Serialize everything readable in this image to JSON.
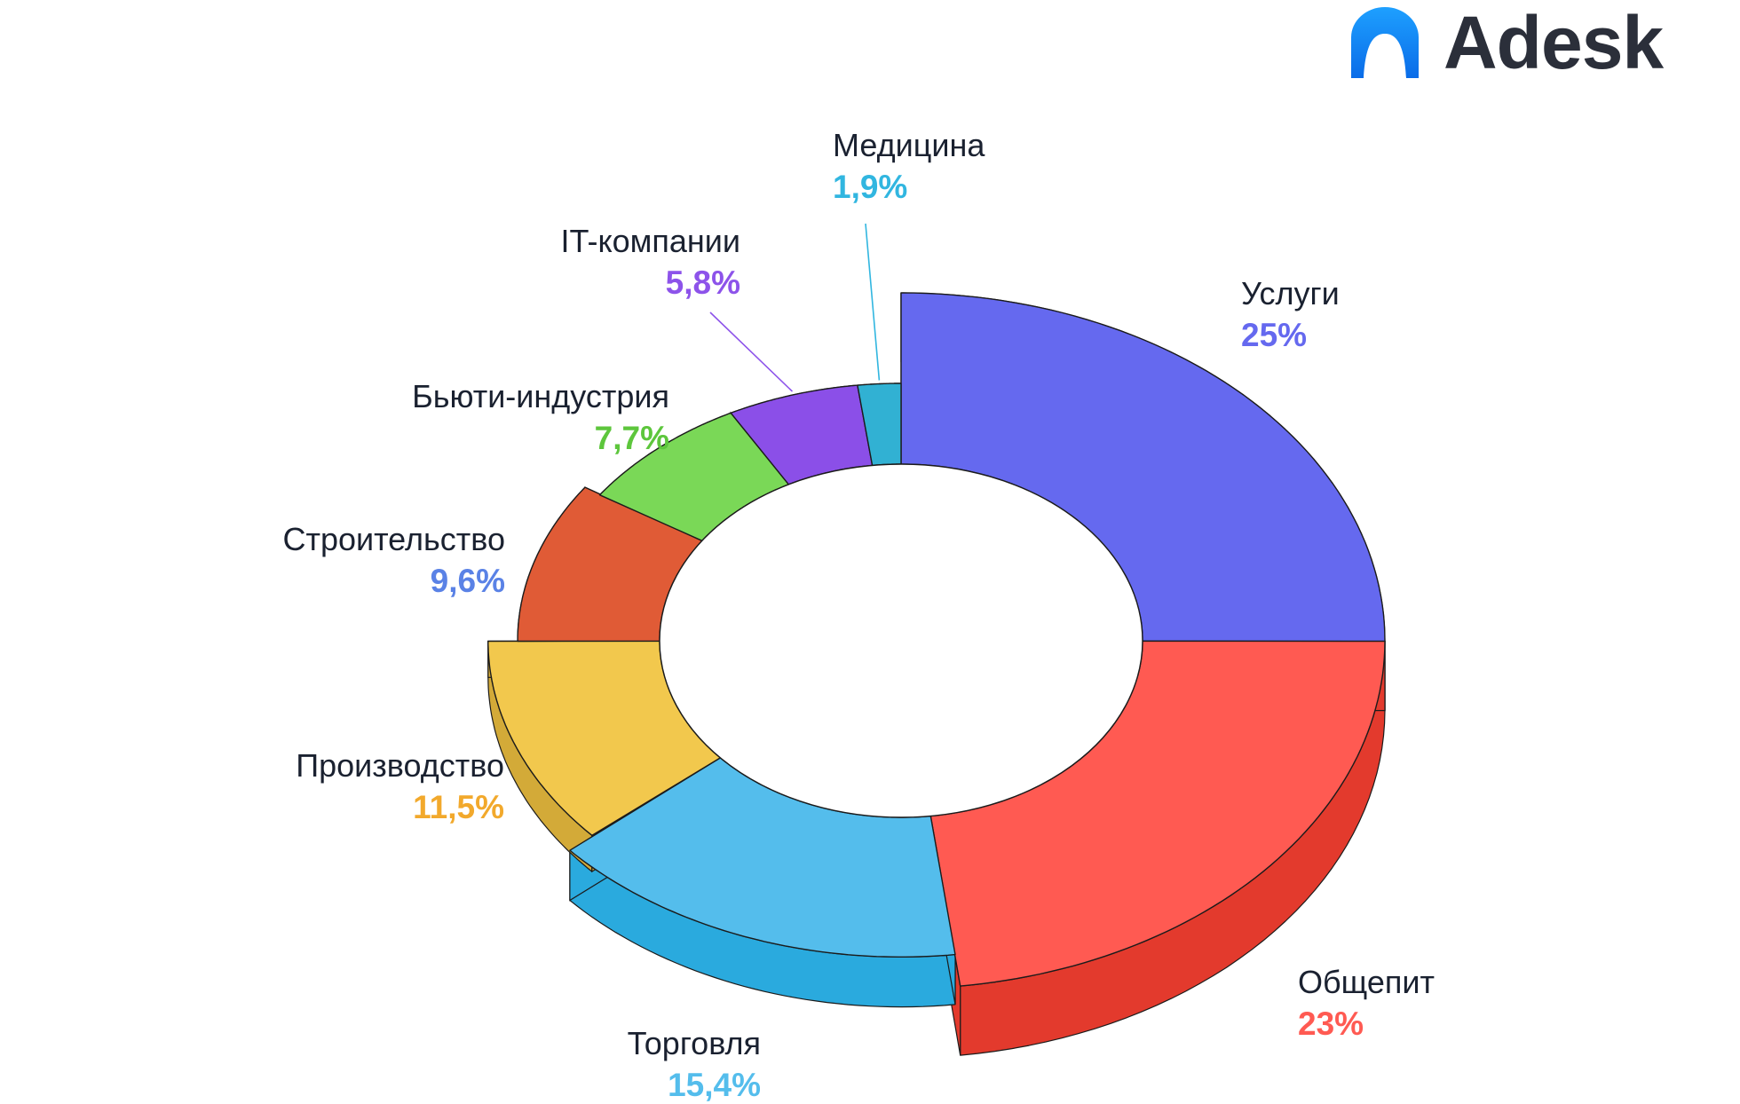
{
  "brand": {
    "name": "Adesk",
    "logo_icon": "adesk-arch-logo-icon",
    "logo_color_top": "#1ea0ff",
    "logo_color_bottom": "#0a6ce8"
  },
  "chart_data": {
    "type": "pie",
    "variant": "3d-donut",
    "title": "",
    "start_angle_deg": 90,
    "direction": "clockwise",
    "slices": [
      {
        "label": "Услуги",
        "value_label": "25%",
        "value": 25,
        "top_color": "#6569ef",
        "inner_color": "#5649db",
        "side_color": "#4f3fd6",
        "text_color": "#6569ef",
        "offset": 1.0
      },
      {
        "label": "Общепит",
        "value_label": "23%",
        "value": 23,
        "top_color": "#ff5a52",
        "inner_color": "#e03b2e",
        "side_color": "#e33a2d",
        "text_color": "#ff5a52",
        "offset": 1.0
      },
      {
        "label": "Торговля",
        "value_label": "15,4%",
        "value": 15.4,
        "top_color": "#54bdec",
        "inner_color": "#2aa9dd",
        "side_color": "#2aaade",
        "text_color": "#54bdec",
        "offset": 0.65
      },
      {
        "label": "Производство",
        "value_label": "11,5%",
        "value": 11.5,
        "top_color": "#f2c84d",
        "inner_color": "#cfa93a",
        "side_color": "#d3aa38",
        "text_color": "#f2a92c",
        "offset": 0.4
      },
      {
        "label": "Строительство",
        "value_label": "9,6%",
        "value": 9.6,
        "top_color": "#e05b36",
        "inner_color": "#c64a29",
        "side_color": "#c64a29",
        "text_color": "#5a82e6",
        "offset": 0.15
      },
      {
        "label": "Бьюти-индустрия",
        "value_label": "7,7%",
        "value": 7.7,
        "top_color": "#7ad857",
        "inner_color": "#3fa82c",
        "side_color": "#3fa82c",
        "text_color": "#5dc63c",
        "offset": 0.0
      },
      {
        "label": "IT-компании",
        "value_label": "5,8%",
        "value": 5.8,
        "top_color": "#8b4fe8",
        "inner_color": "#7136c6",
        "side_color": "#7136c6",
        "text_color": "#8d53ea",
        "offset": 0.0
      },
      {
        "label": "Медицина",
        "value_label": "1,9%",
        "value": 1.9,
        "top_color": "#31b1d3",
        "inner_color": "#2a9fbd",
        "side_color": "#2a9fbd",
        "text_color": "#31b6e0",
        "offset": 0.0
      }
    ],
    "legend": "labels-around",
    "leader_lines": [
      "IT-компании",
      "Медицина"
    ]
  }
}
